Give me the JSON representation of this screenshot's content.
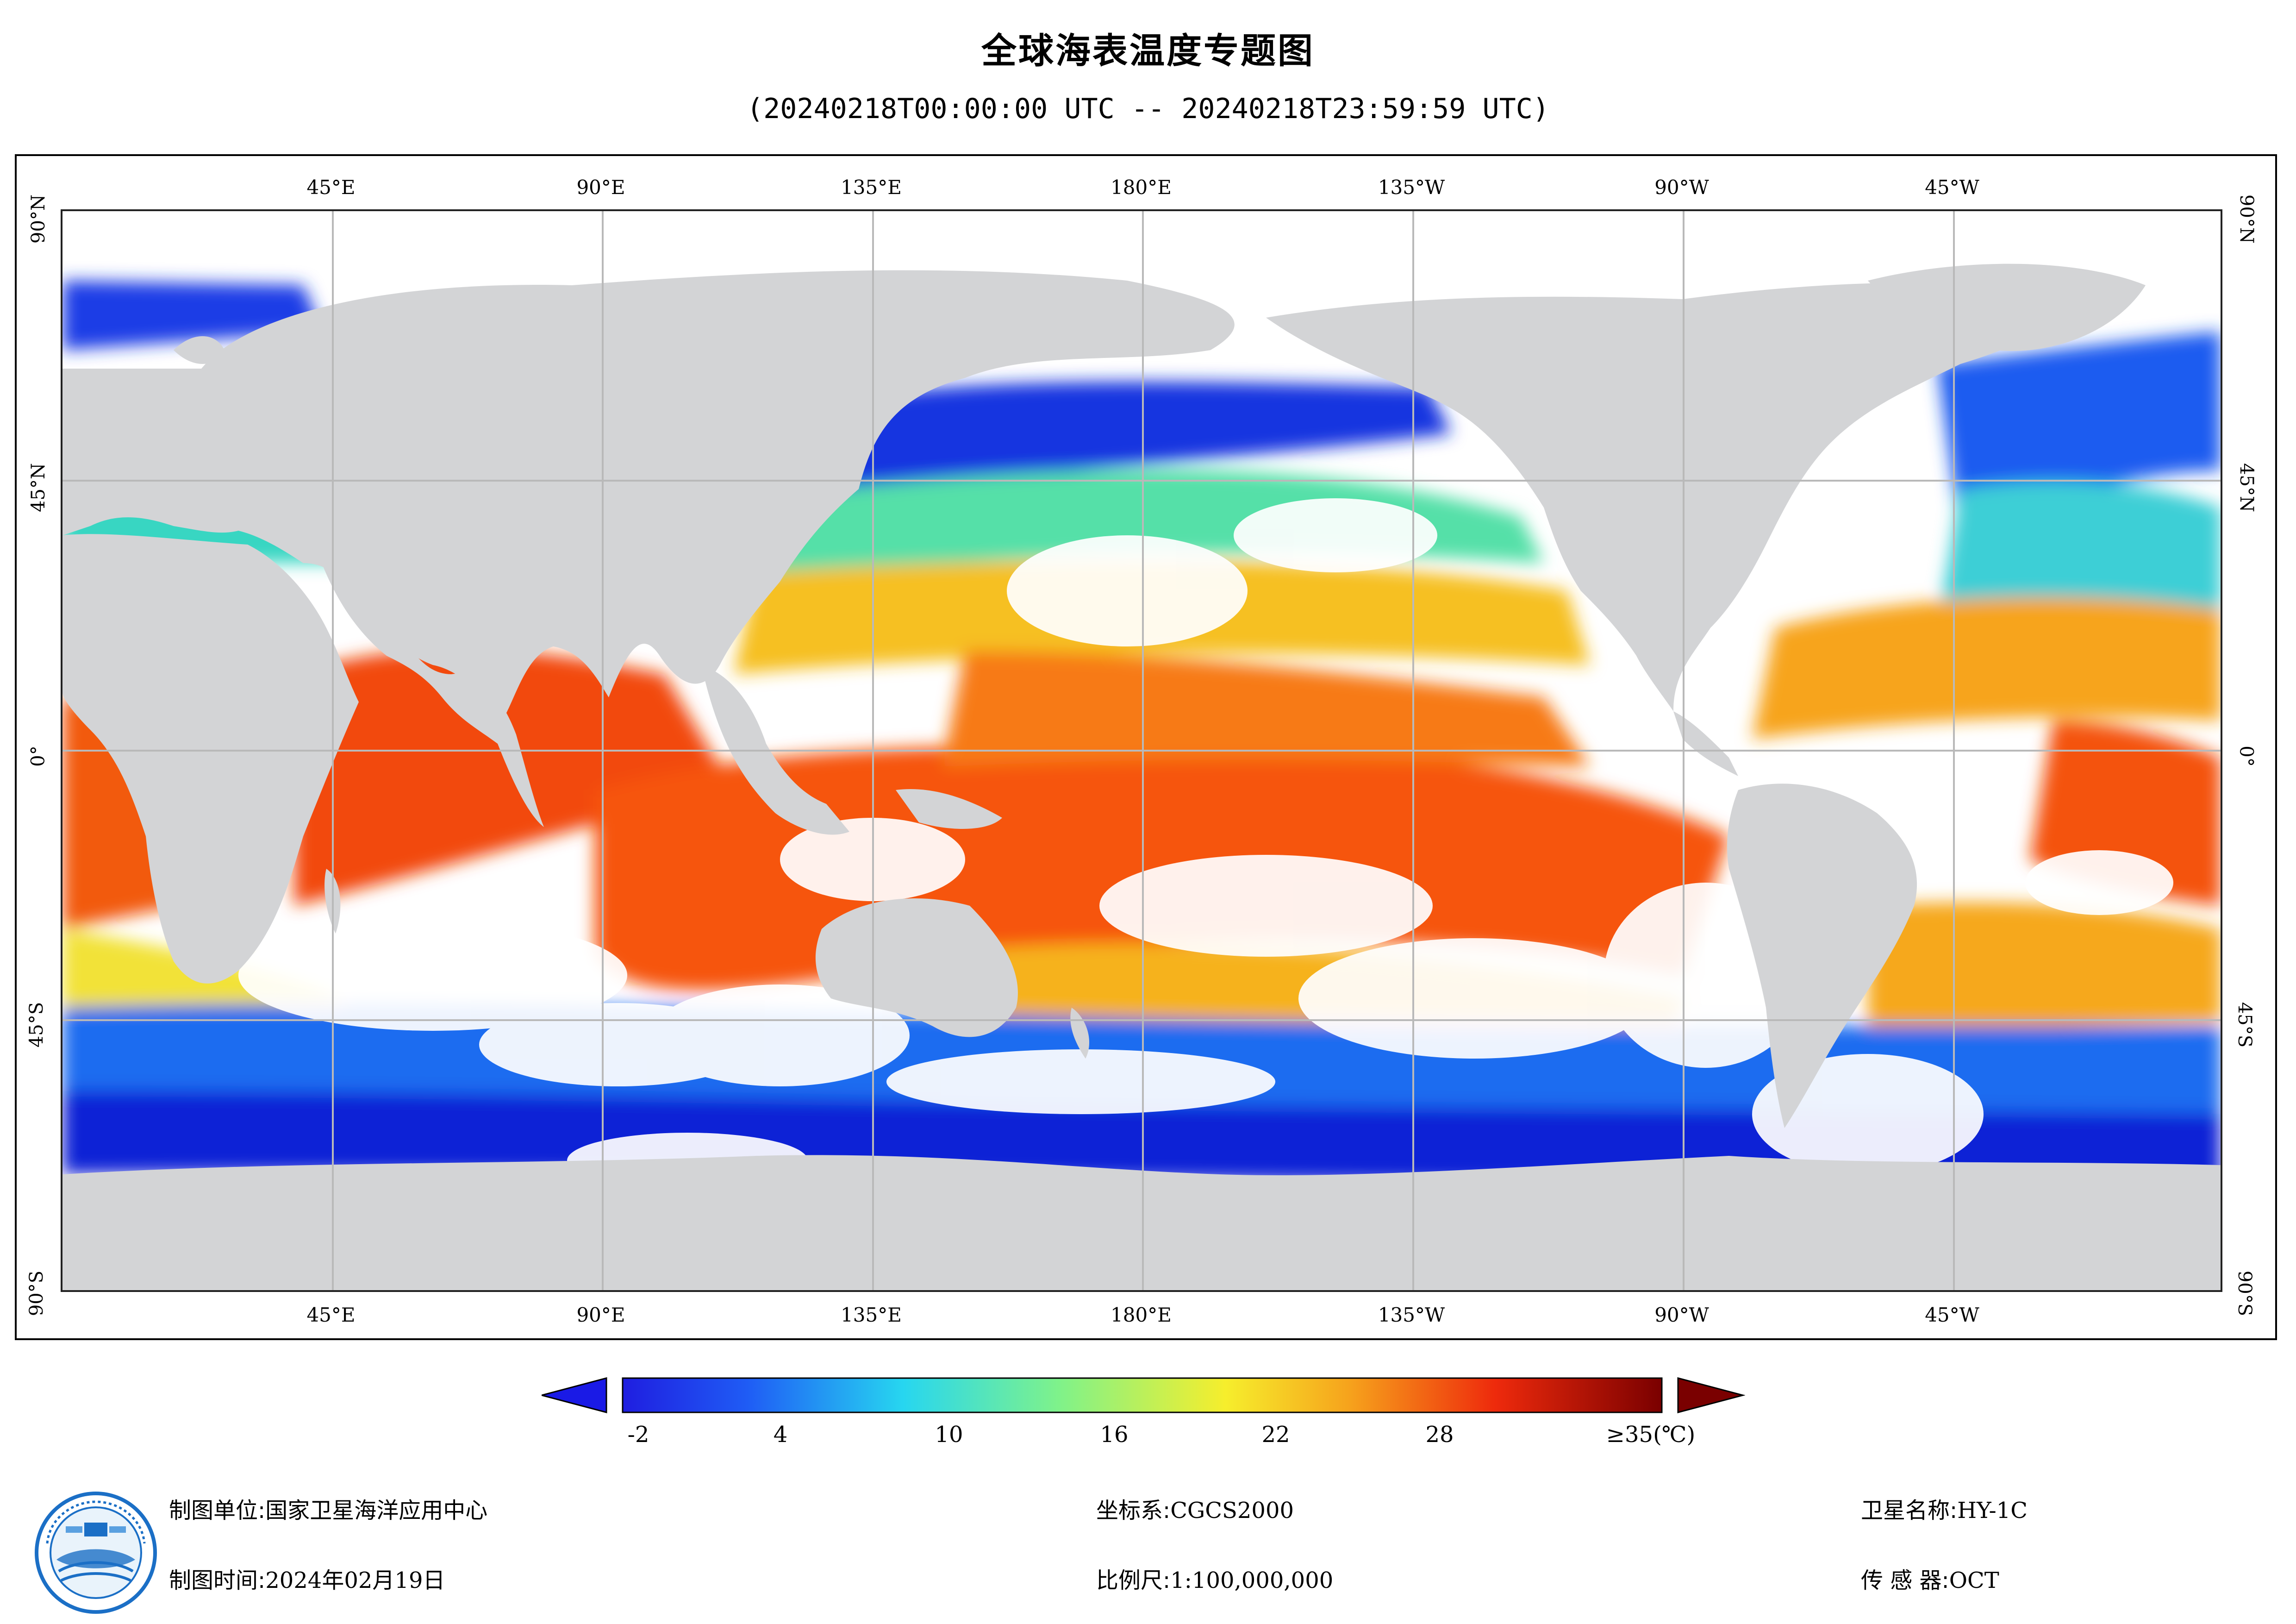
{
  "title": "全球海表温度专题图",
  "subtitle": "(20240218T00:00:00 UTC -- 20240218T23:59:59 UTC)",
  "map": {
    "longitude_labels": [
      "45°E",
      "90°E",
      "135°E",
      "180°E",
      "135°W",
      "90°W",
      "45°W"
    ],
    "latitude_labels": [
      "90°N",
      "45°N",
      "0°",
      "45°S",
      "90°S"
    ],
    "colors": {
      "land": "#d3d4d6",
      "no_data": "#ffffff",
      "grid": "#b9b9b9",
      "frame": "#000000"
    }
  },
  "colorbar": {
    "tick_labels": [
      "-2",
      "4",
      "10",
      "16",
      "22",
      "28",
      "≥35(℃)"
    ],
    "min": -2,
    "max": 35,
    "unit": "℃",
    "under_color": "#1a1ae6",
    "over_color": "#7a0000"
  },
  "footer": {
    "unit_label": "制图单位:",
    "unit_value": "国家卫星海洋应用中心",
    "time_label": "制图时间:",
    "time_value": "2024年02月19日",
    "crs_label": "坐标系:",
    "crs_value": "CGCS2000",
    "scale_label": "比例尺:",
    "scale_value": "1:100,000,000",
    "satellite_label": "卫星名称:",
    "satellite_value": "HY-1C",
    "sensor_label": "传 感 器:",
    "sensor_value": "OCT"
  },
  "logo_icon": "nsoas-satellite-logo-icon"
}
